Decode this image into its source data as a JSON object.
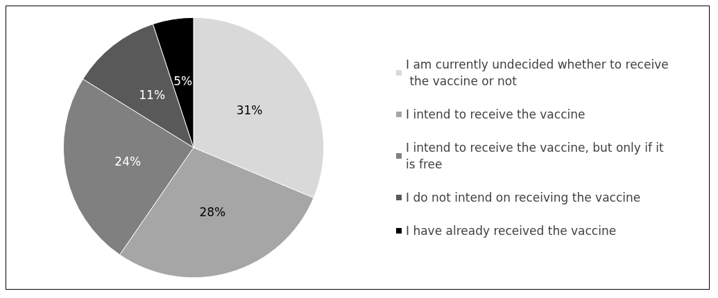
{
  "chart_data": {
    "type": "pie",
    "categories": [
      "I am currently undecided whether to receive the vaccine or not",
      "I intend to receive the vaccine",
      "I intend to receive the vaccine, but only if it is free",
      "I do not intend on receiving the vaccine",
      "I have already received the vaccine"
    ],
    "values": [
      31,
      28,
      24,
      11,
      5
    ],
    "colors": [
      "#d9d9d9",
      "#a6a6a6",
      "#808080",
      "#595959",
      "#000000"
    ],
    "value_labels": [
      "31%",
      "28%",
      "24%",
      "11%",
      "5%"
    ],
    "legend": "right"
  }
}
